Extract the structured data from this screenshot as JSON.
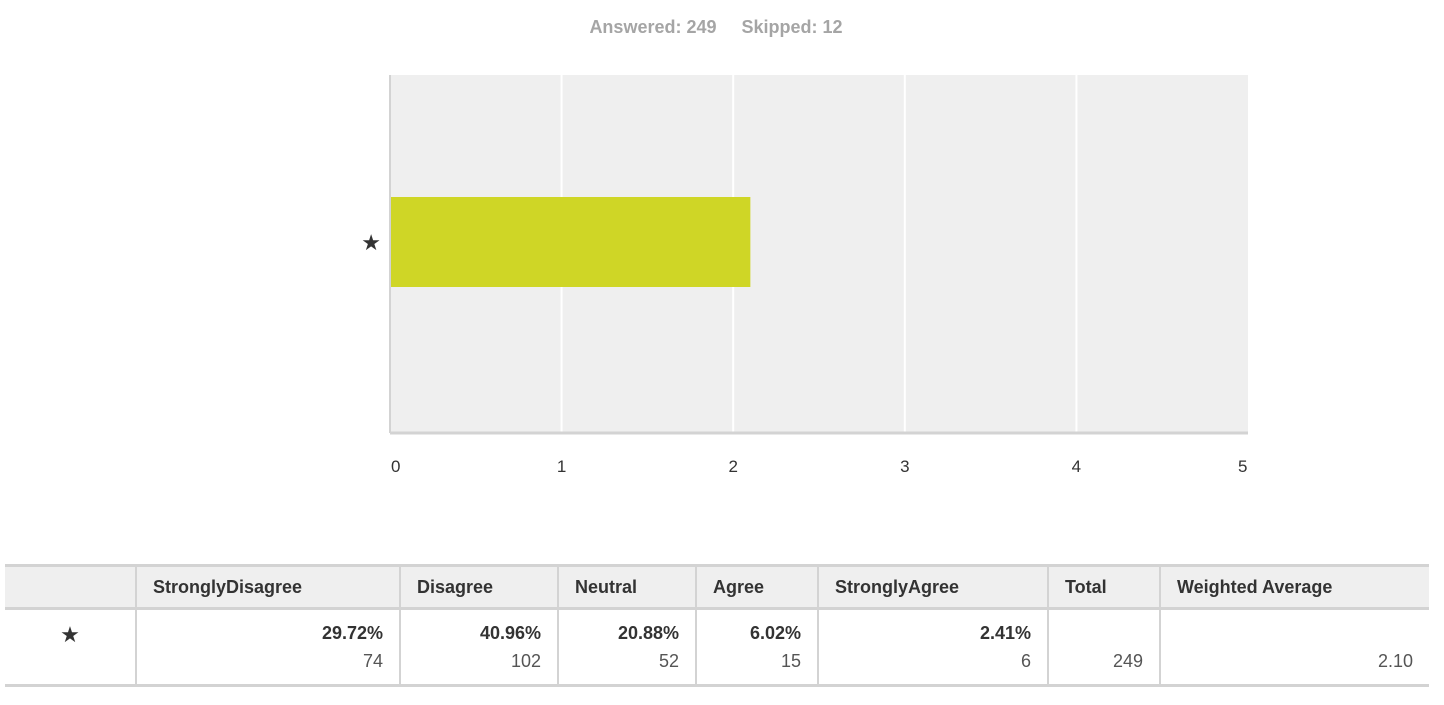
{
  "summary": {
    "answered": "Answered: 249",
    "skipped": "Skipped: 12"
  },
  "chart_data": {
    "type": "bar",
    "orientation": "horizontal",
    "categories": [
      "★"
    ],
    "values": [
      2.1
    ],
    "xlim": [
      0,
      5
    ],
    "xticks": [
      "0",
      "1",
      "2",
      "3",
      "4",
      "5"
    ],
    "grid": true,
    "bar_color": "#cfd626",
    "background": "#efefef"
  },
  "table": {
    "headers": [
      "",
      "StronglyDisagree",
      "Disagree",
      "Neutral",
      "Agree",
      "StronglyAgree",
      "Total",
      "Weighted Average"
    ],
    "row": {
      "label": "★",
      "cells": [
        {
          "pct": "29.72%",
          "count": "74"
        },
        {
          "pct": "40.96%",
          "count": "102"
        },
        {
          "pct": "20.88%",
          "count": "52"
        },
        {
          "pct": "6.02%",
          "count": "15"
        },
        {
          "pct": "2.41%",
          "count": "6"
        }
      ],
      "total": "249",
      "weighted_average": "2.10"
    }
  }
}
